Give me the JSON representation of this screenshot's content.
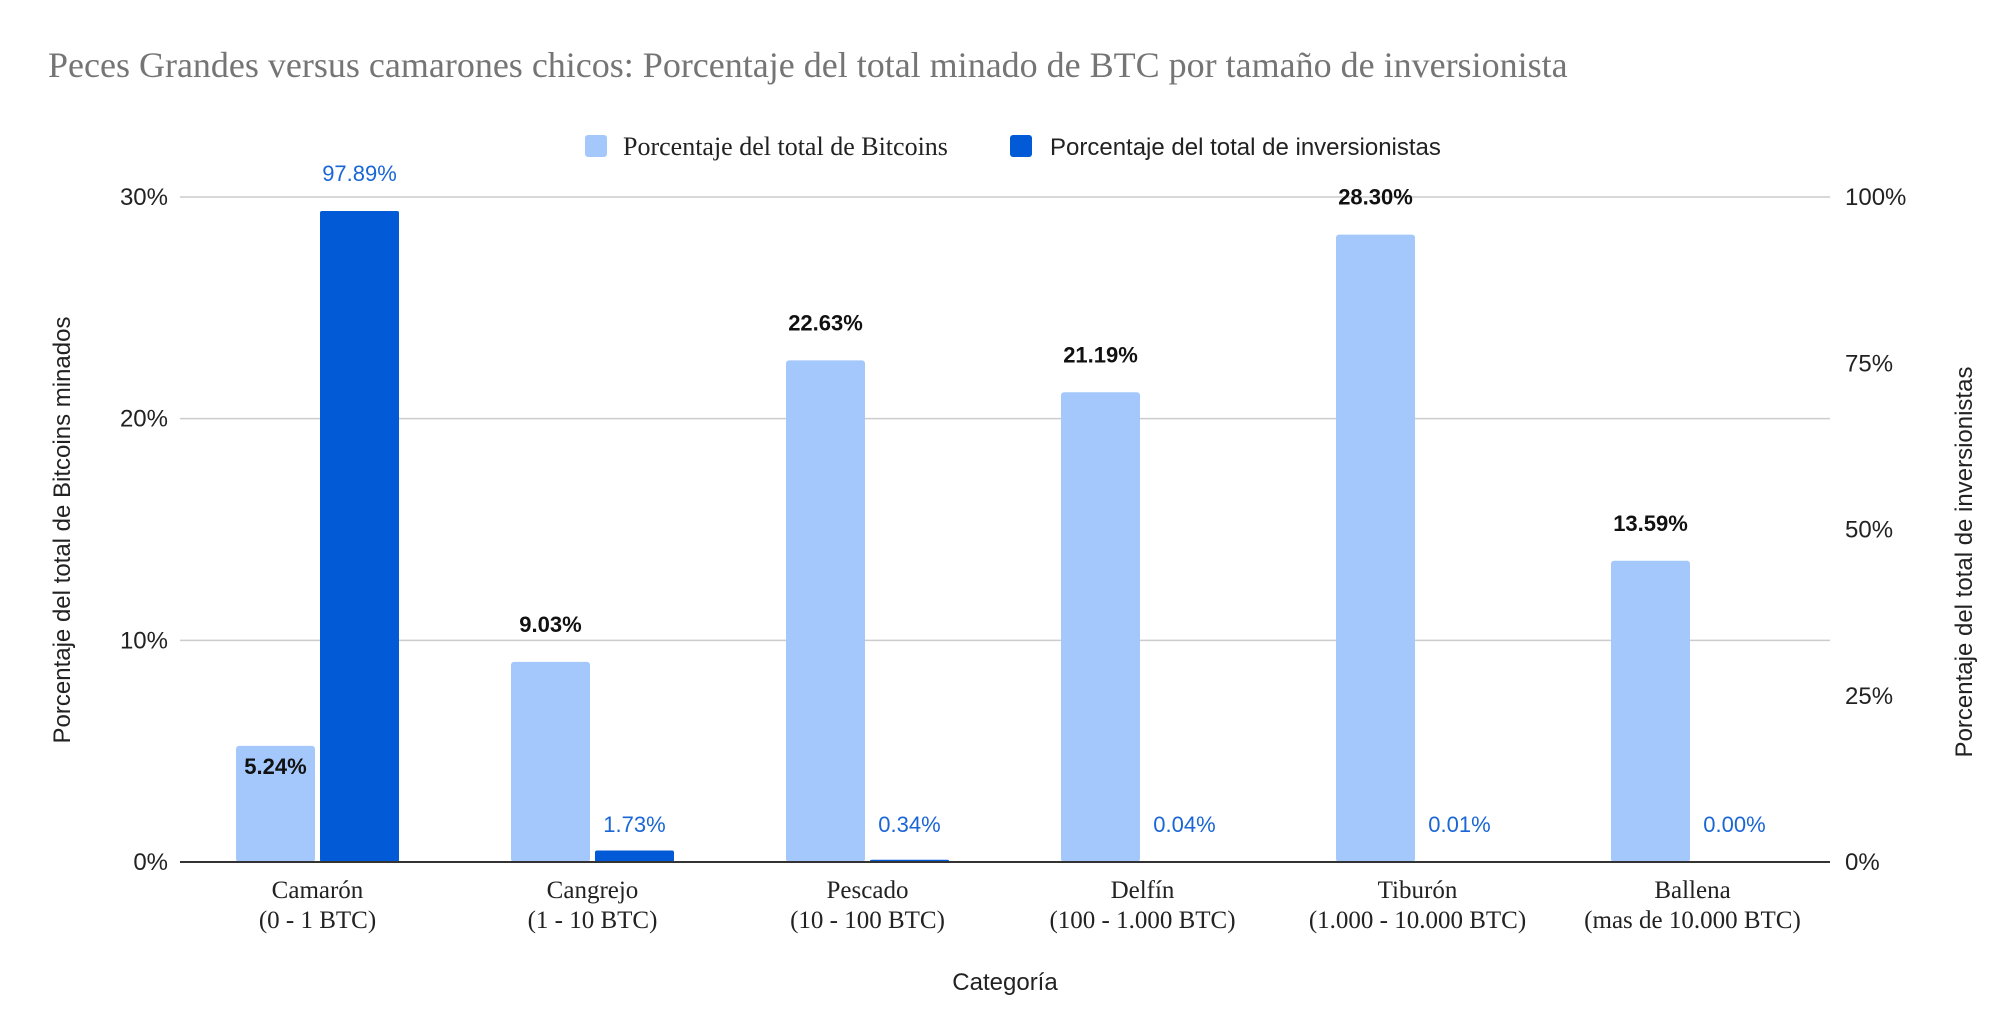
{
  "chart_data": {
    "type": "bar",
    "title": "Peces Grandes versus camarones chicos: Porcentaje del total minado de BTC por tamaño de inversionista",
    "xlabel": "Categoría",
    "ylabel": "Porcentaje del total de Bitcoins minados",
    "y2label": "Porcentaje del total de inversionistas",
    "ylim": [
      0,
      30
    ],
    "y2lim": [
      0,
      100
    ],
    "yticks": [
      "0%",
      "10%",
      "20%",
      "30%"
    ],
    "y2ticks": [
      "0%",
      "25%",
      "50%",
      "75%",
      "100%"
    ],
    "legend_position": "top-center",
    "grid": true,
    "categories": [
      {
        "name": "Camarón",
        "range": "(0 - 1 BTC)"
      },
      {
        "name": "Cangrejo",
        "range": "(1 - 10 BTC)"
      },
      {
        "name": "Pescado",
        "range": "(10 - 100 BTC)"
      },
      {
        "name": "Delfín",
        "range": "(100 - 1.000 BTC)"
      },
      {
        "name": "Tiburón",
        "range": "(1.000 - 10.000 BTC)"
      },
      {
        "name": "Ballena",
        "range": "(mas de 10.000 BTC)"
      }
    ],
    "series": [
      {
        "name": "Porcentaje del total de Bitcoins",
        "axis": "left",
        "color": "#a4c8fb",
        "label_color": "#111111",
        "values": [
          5.24,
          9.03,
          22.63,
          21.19,
          28.3,
          13.59
        ],
        "labels": [
          "5.24%",
          "9.03%",
          "22.63%",
          "21.19%",
          "28.30%",
          "13.59%"
        ]
      },
      {
        "name": "Porcentaje del total de inversionistas",
        "axis": "right",
        "color": "#035ad6",
        "label_color": "#1a66d6",
        "values": [
          97.89,
          1.73,
          0.34,
          0.04,
          0.01,
          0.0
        ],
        "labels": [
          "97.89%",
          "1.73%",
          "0.34%",
          "0.04%",
          "0.01%",
          "0.00%"
        ]
      }
    ]
  }
}
